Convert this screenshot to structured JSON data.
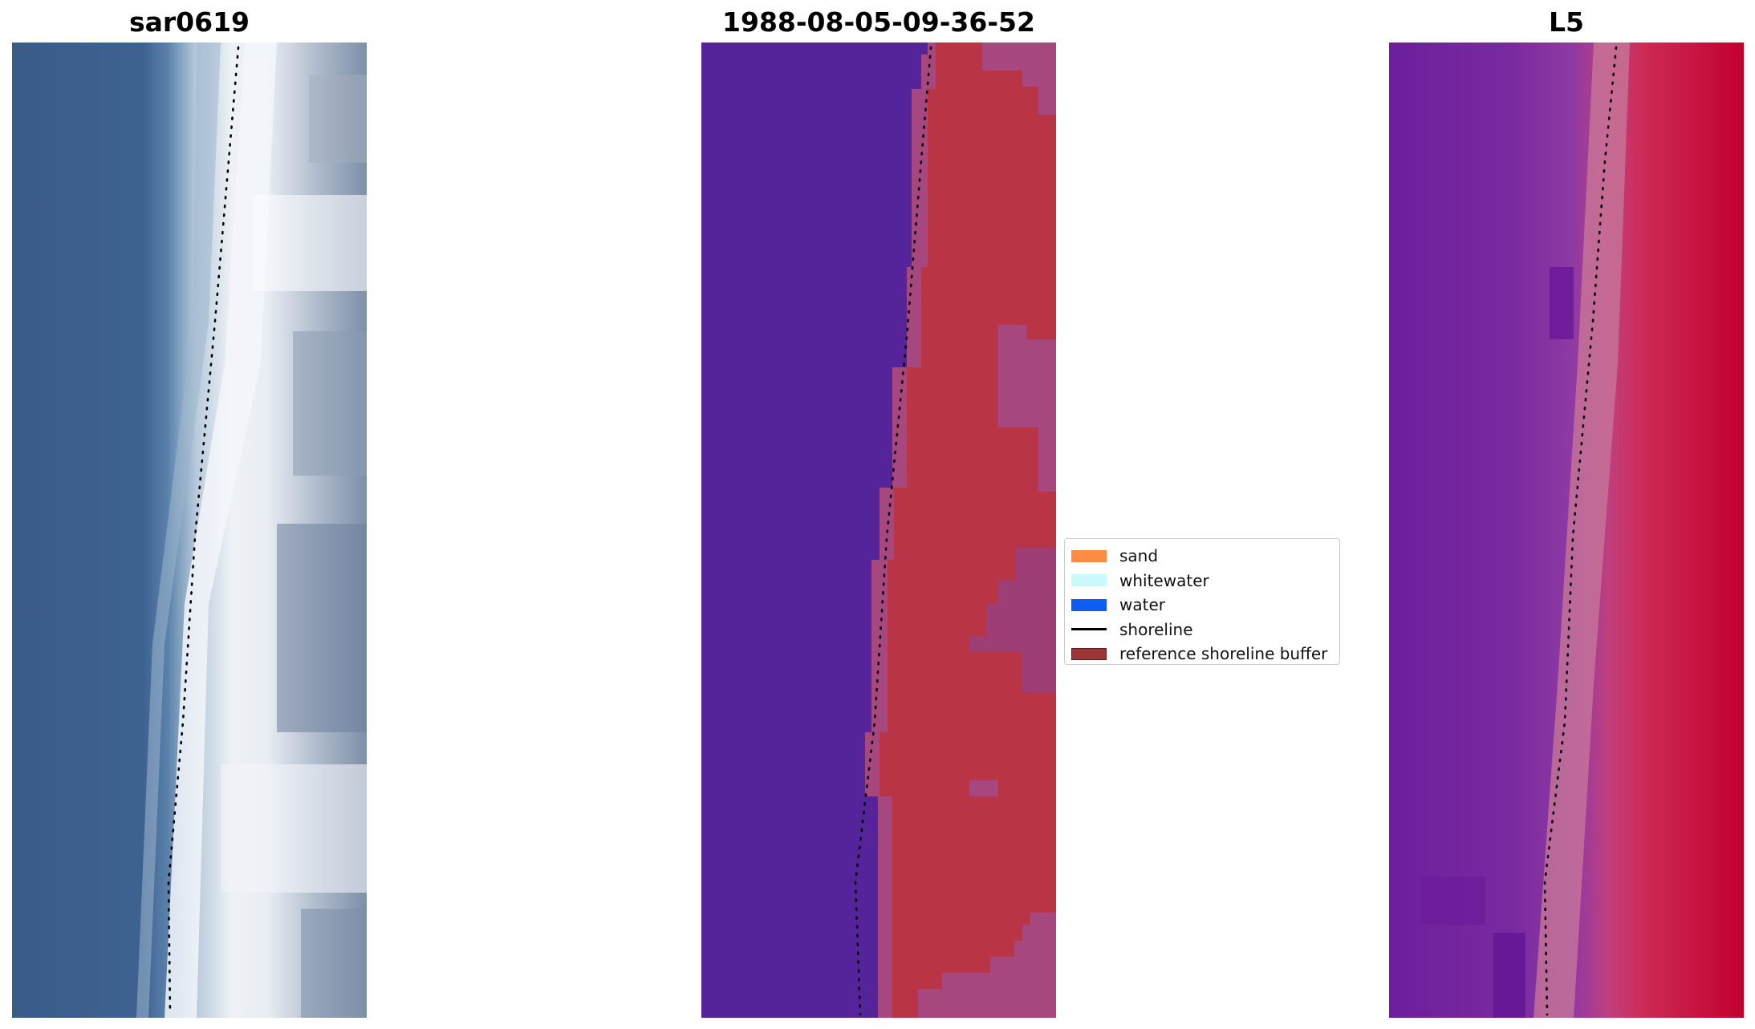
{
  "panels": [
    {
      "id": "rgb",
      "title": "sar0619"
    },
    {
      "id": "classified",
      "title": "1988-08-05-09-36-52"
    },
    {
      "id": "index",
      "title": "L5"
    }
  ],
  "legend": {
    "items": [
      {
        "label": "sand",
        "kind": "patch",
        "color": "#ff8c42"
      },
      {
        "label": "whitewater",
        "kind": "patch",
        "color": "#c8fbfb"
      },
      {
        "label": "water",
        "kind": "patch",
        "color": "#0f5cf5"
      },
      {
        "label": "shoreline",
        "kind": "line",
        "color": "#000000"
      },
      {
        "label": "reference shoreline buffer",
        "kind": "buffer",
        "color": "#9c3438"
      }
    ]
  },
  "colors": {
    "water_rgb": "#3d5e8c",
    "surf_rgb": "#e6ebf3",
    "class_water": "#55239a",
    "class_sand_buffer": "#b93545",
    "class_mixed": "#a44a85",
    "index_water": "#70209e",
    "index_land": "#c5002f",
    "buffer_band": "#c1708f"
  }
}
